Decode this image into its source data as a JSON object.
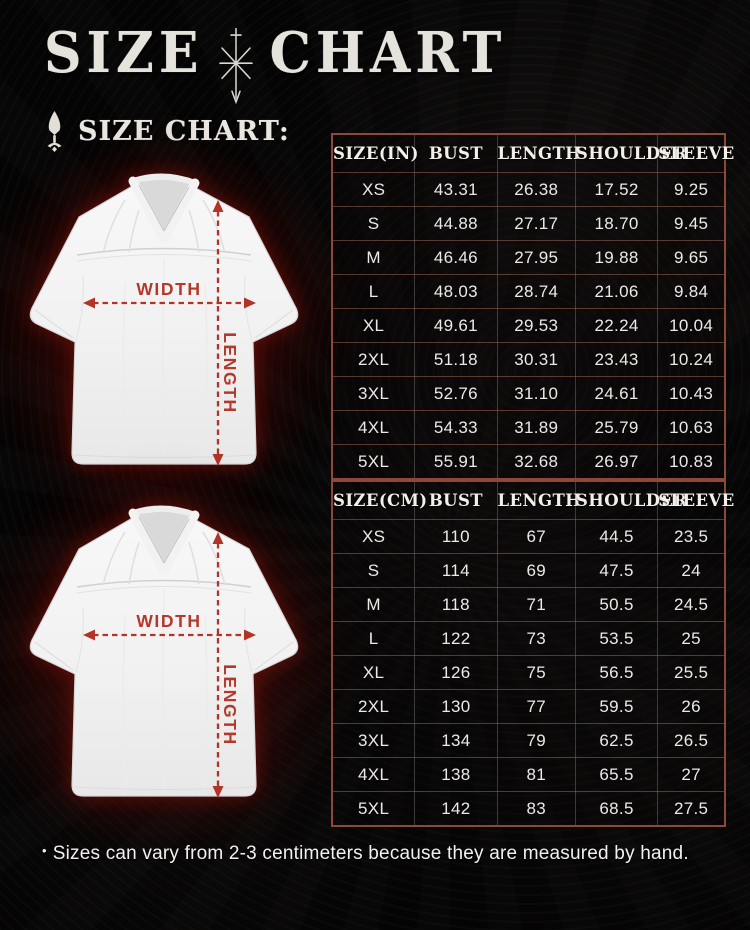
{
  "header": {
    "title_left": "SIZE",
    "title_right": "CHART",
    "subtitle": "SIZE CHART:"
  },
  "diagram": {
    "width_label": "WIDTH",
    "length_label": "LENGTH"
  },
  "tables": [
    {
      "name": "inches",
      "headers": [
        "SIZE(IN)",
        "BUST",
        "LENGTH",
        "SHOULDER",
        "SLEEVE"
      ],
      "rows": [
        [
          "XS",
          "43.31",
          "26.38",
          "17.52",
          "9.25"
        ],
        [
          "S",
          "44.88",
          "27.17",
          "18.70",
          "9.45"
        ],
        [
          "M",
          "46.46",
          "27.95",
          "19.88",
          "9.65"
        ],
        [
          "L",
          "48.03",
          "28.74",
          "21.06",
          "9.84"
        ],
        [
          "XL",
          "49.61",
          "29.53",
          "22.24",
          "10.04"
        ],
        [
          "2XL",
          "51.18",
          "30.31",
          "23.43",
          "10.24"
        ],
        [
          "3XL",
          "52.76",
          "31.10",
          "24.61",
          "10.43"
        ],
        [
          "4XL",
          "54.33",
          "31.89",
          "25.79",
          "10.63"
        ],
        [
          "5XL",
          "55.91",
          "32.68",
          "26.97",
          "10.83"
        ]
      ]
    },
    {
      "name": "centimeters",
      "headers": [
        "SIZE(CM)",
        "BUST",
        "LENGTH",
        "SHOULDER",
        "SLEEVE"
      ],
      "rows": [
        [
          "XS",
          "110",
          "67",
          "44.5",
          "23.5"
        ],
        [
          "S",
          "114",
          "69",
          "47.5",
          "24"
        ],
        [
          "M",
          "118",
          "71",
          "50.5",
          "24.5"
        ],
        [
          "L",
          "122",
          "73",
          "53.5",
          "25"
        ],
        [
          "XL",
          "126",
          "75",
          "56.5",
          "25.5"
        ],
        [
          "2XL",
          "130",
          "77",
          "59.5",
          "26"
        ],
        [
          "3XL",
          "134",
          "79",
          "62.5",
          "26.5"
        ],
        [
          "4XL",
          "138",
          "81",
          "65.5",
          "27"
        ],
        [
          "5XL",
          "142",
          "83",
          "68.5",
          "27.5"
        ]
      ]
    }
  ],
  "footnote": {
    "bullet": "•",
    "text": "Sizes can vary from 2-3 centimeters because they are measured by hand."
  },
  "colors": {
    "accent_red": "#b5392b",
    "table_border_rust": "#8d4937",
    "text_offwhite": "#eceae8",
    "background_black": "#050404"
  }
}
